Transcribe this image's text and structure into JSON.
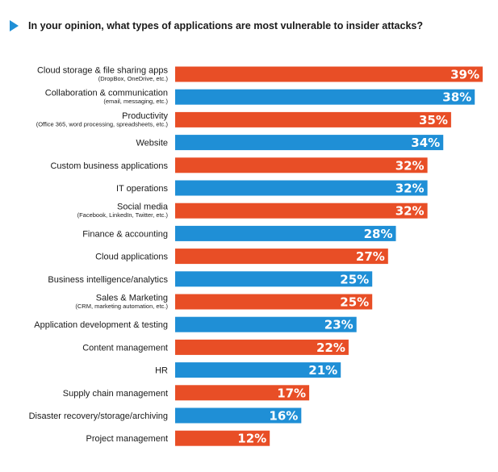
{
  "title": "In your opinion, what types of applications are most vulnerable to insider attacks?",
  "colors": {
    "orange": "#e84e26",
    "blue": "#1f8fd6",
    "title_arrow": "#1f8fd6"
  },
  "icons": {
    "title_marker": "play-triangle-icon"
  },
  "chart_data": {
    "type": "bar",
    "orientation": "horizontal",
    "unit": "%",
    "xlim": [
      0,
      39
    ],
    "grid": false,
    "legend": "none",
    "categories": [
      {
        "label": "Cloud storage & file sharing apps",
        "sub": "(DropBox, OneDrive, etc.)",
        "value": 39,
        "display": "39%",
        "color": "orange"
      },
      {
        "label": "Collaboration & communication",
        "sub": "(email, messaging, etc.)",
        "value": 38,
        "display": "38%",
        "color": "blue"
      },
      {
        "label": "Productivity",
        "sub": "(Office 365, word processing, spreadsheets, etc.)",
        "value": 35,
        "display": "35%",
        "color": "orange"
      },
      {
        "label": "Website",
        "sub": "",
        "value": 34,
        "display": "34%",
        "color": "blue"
      },
      {
        "label": "Custom business applications",
        "sub": "",
        "value": 32,
        "display": "32%",
        "color": "orange"
      },
      {
        "label": "IT operations",
        "sub": "",
        "value": 32,
        "display": "32%",
        "color": "blue"
      },
      {
        "label": "Social media",
        "sub": "(Facebook, LinkedIn, Twitter, etc.)",
        "value": 32,
        "display": "32%",
        "color": "orange"
      },
      {
        "label": "Finance & accounting",
        "sub": "",
        "value": 28,
        "display": "28%",
        "color": "blue"
      },
      {
        "label": "Cloud applications",
        "sub": "",
        "value": 27,
        "display": "27%",
        "color": "orange"
      },
      {
        "label": "Business intelligence/analytics",
        "sub": "",
        "value": 25,
        "display": "25%",
        "color": "blue"
      },
      {
        "label": "Sales & Marketing",
        "sub": "(CRM, marketing automation, etc.)",
        "value": 25,
        "display": "25%",
        "color": "orange"
      },
      {
        "label": "Application development & testing",
        "sub": "",
        "value": 23,
        "display": "23%",
        "color": "blue"
      },
      {
        "label": "Content management",
        "sub": "",
        "value": 22,
        "display": "22%",
        "color": "orange"
      },
      {
        "label": "HR",
        "sub": "",
        "value": 21,
        "display": "21%",
        "color": "blue"
      },
      {
        "label": "Supply chain management",
        "sub": "",
        "value": 17,
        "display": "17%",
        "color": "orange"
      },
      {
        "label": "Disaster recovery/storage/archiving",
        "sub": "",
        "value": 16,
        "display": "16%",
        "color": "blue"
      },
      {
        "label": "Project management",
        "sub": "",
        "value": 12,
        "display": "12%",
        "color": "orange"
      }
    ]
  }
}
